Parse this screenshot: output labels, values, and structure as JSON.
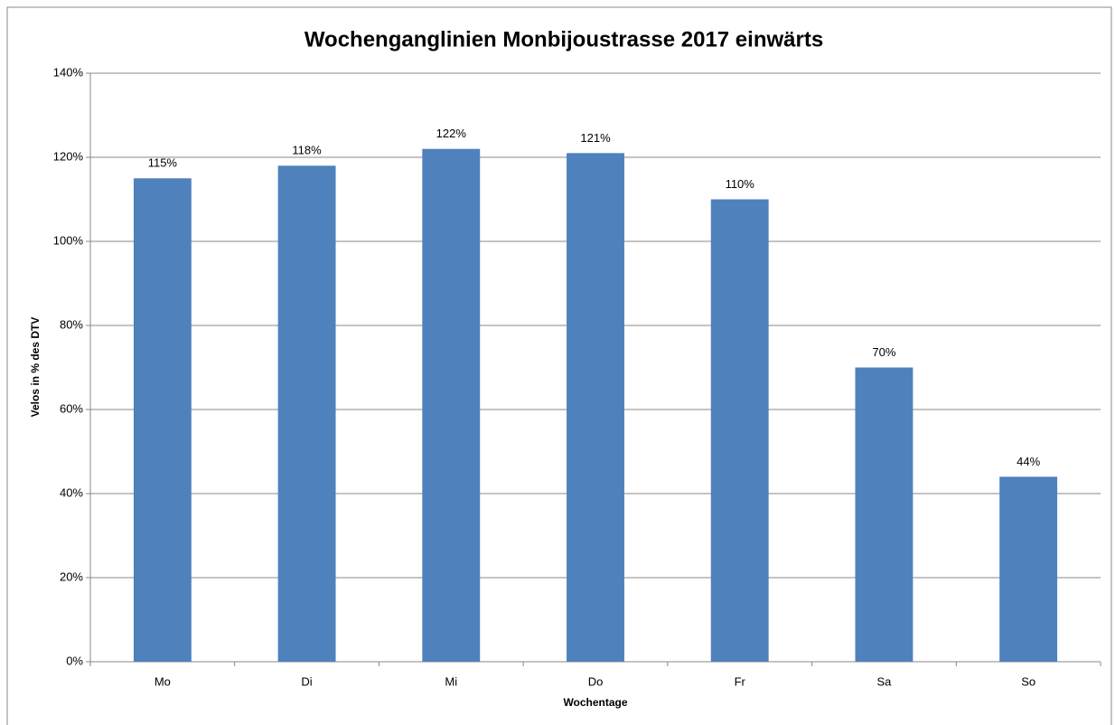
{
  "chart_data": {
    "type": "bar",
    "title": "Wochenganglinien Monbijoustrasse 2017 einwärts",
    "x_label": "Wochentage",
    "y_label": "Velos in % des DTV",
    "categories": [
      "Mo",
      "Di",
      "Mi",
      "Do",
      "Fr",
      "Sa",
      "So"
    ],
    "values": [
      115,
      118,
      122,
      121,
      110,
      70,
      44
    ],
    "value_labels": [
      "115%",
      "118%",
      "122%",
      "121%",
      "110%",
      "70%",
      "44%"
    ],
    "color": "#4f81bd",
    "ylim": [
      0,
      140
    ],
    "yticks": [
      {
        "value": 0,
        "label": "0%"
      },
      {
        "value": 20,
        "label": "20%"
      },
      {
        "value": 40,
        "label": "40%"
      },
      {
        "value": 60,
        "label": "60%"
      },
      {
        "value": 80,
        "label": "80%"
      },
      {
        "value": 100,
        "label": "100%"
      },
      {
        "value": 120,
        "label": "120%"
      },
      {
        "value": 140,
        "label": "140%"
      }
    ],
    "grid": true
  }
}
